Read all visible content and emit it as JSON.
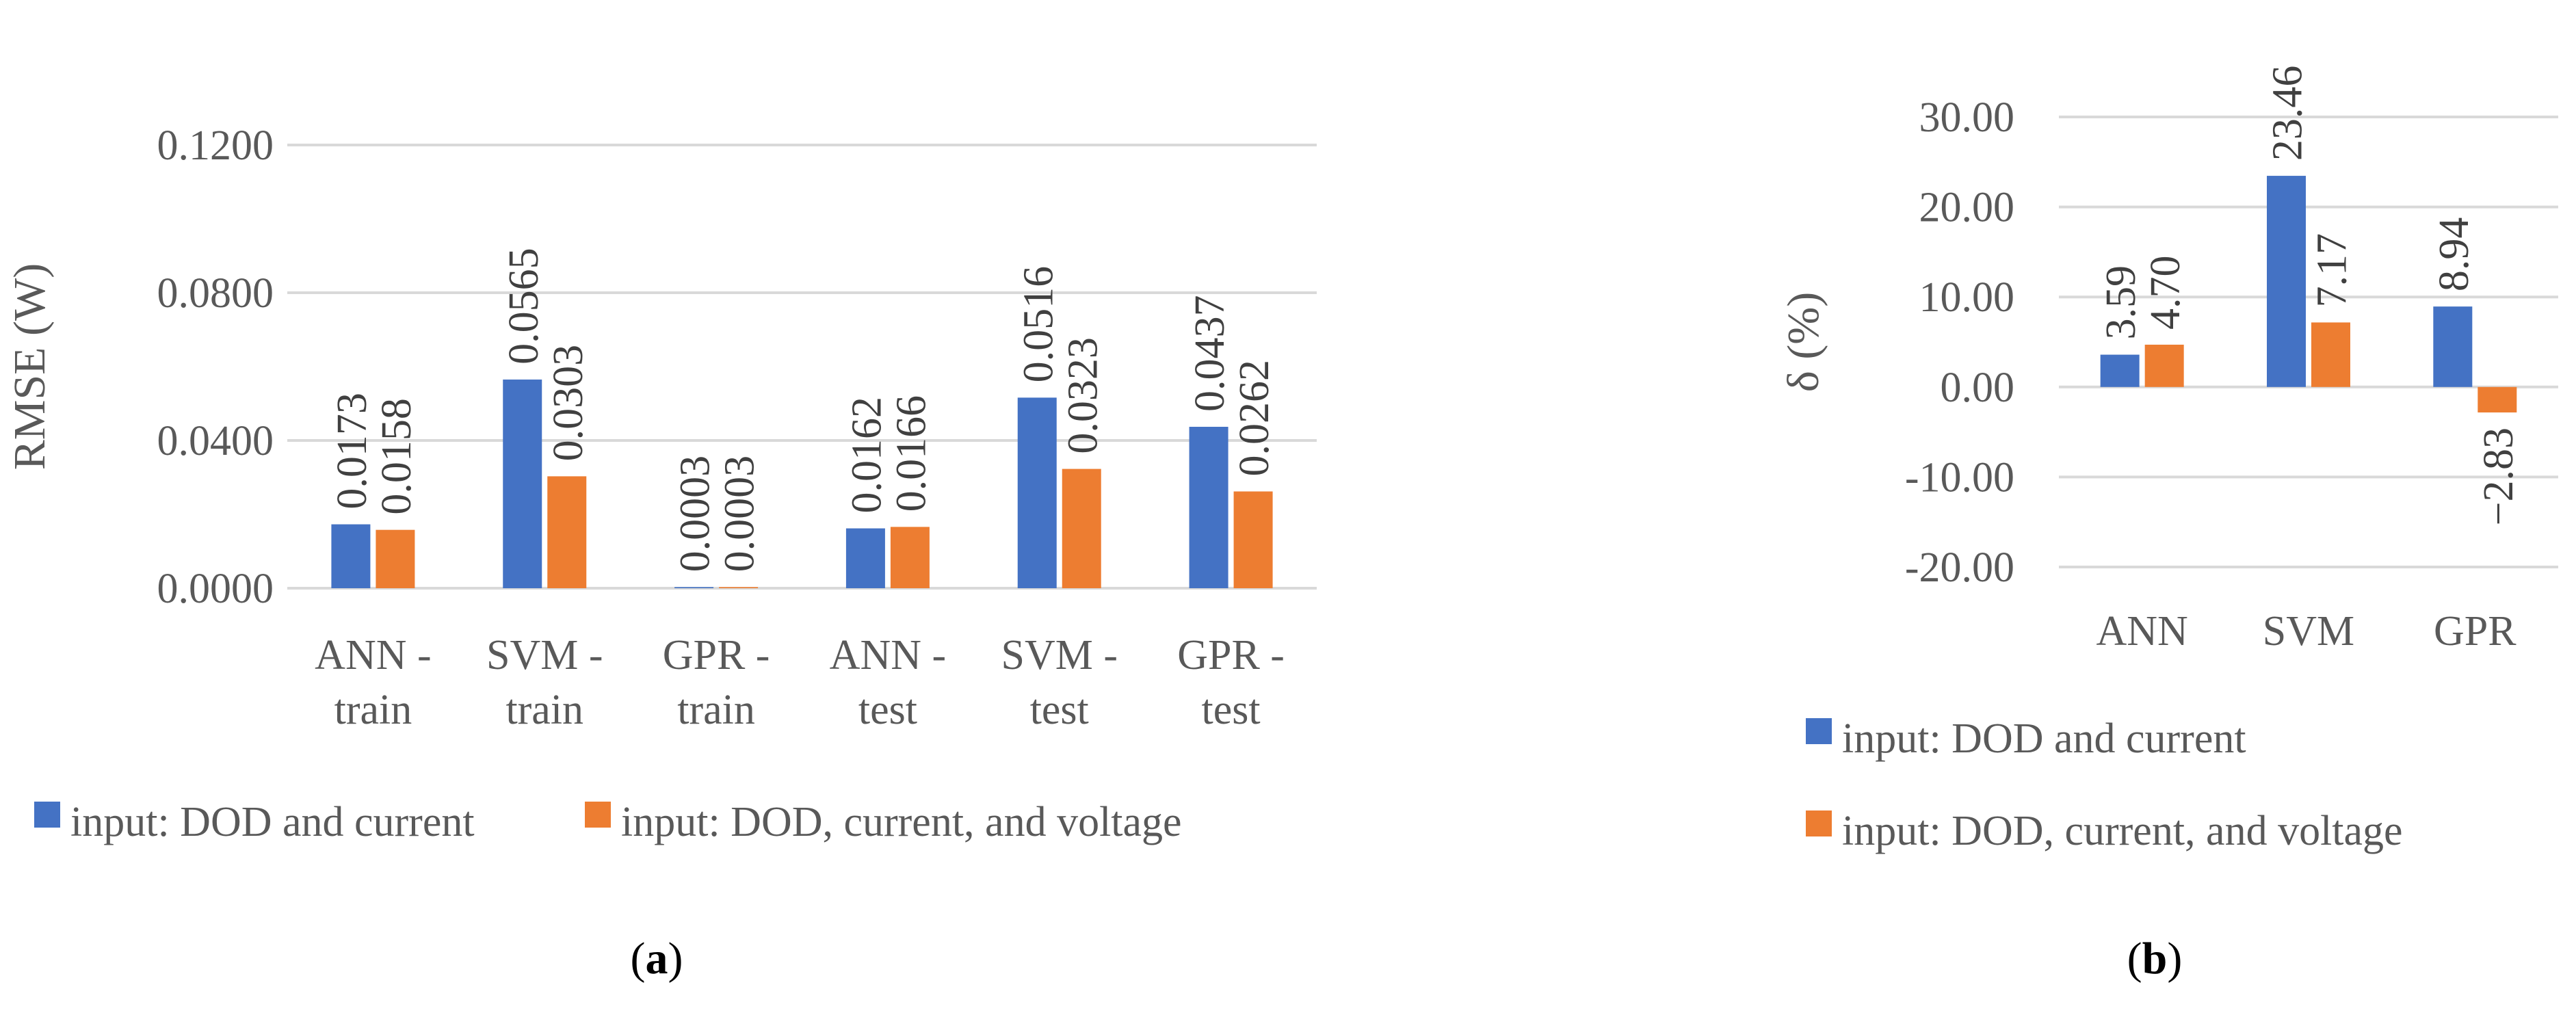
{
  "colors": {
    "series1": "#4472c4",
    "series2": "#ed7d31",
    "grid": "#d9d9d9"
  },
  "chart_data": [
    {
      "id": "a",
      "type": "bar",
      "caption_open": "(",
      "caption_letter": "a",
      "caption_close": ")",
      "ylabel": "RMSE (W)",
      "ylim": [
        0,
        0.12
      ],
      "yticks": [
        "0.0000",
        "0.0400",
        "0.0800",
        "0.1200"
      ],
      "categories": [
        [
          "ANN -",
          "train"
        ],
        [
          "SVM -",
          "train"
        ],
        [
          "GPR -",
          "train"
        ],
        [
          "ANN -",
          "test"
        ],
        [
          "SVM -",
          "test"
        ],
        [
          "GPR -",
          "test"
        ]
      ],
      "series": [
        {
          "name": "input: DOD and current",
          "values": [
            0.0173,
            0.0565,
            0.0003,
            0.0162,
            0.0516,
            0.0437
          ],
          "labels": [
            "0.0173",
            "0.0565",
            "0.0003",
            "0.0162",
            "0.0516",
            "0.0437"
          ]
        },
        {
          "name": "input: DOD, current, and voltage",
          "values": [
            0.0158,
            0.0303,
            0.0003,
            0.0166,
            0.0323,
            0.0262
          ],
          "labels": [
            "0.0158",
            "0.0303",
            "0.0003",
            "0.0166",
            "0.0323",
            "0.0262"
          ]
        }
      ]
    },
    {
      "id": "b",
      "type": "bar",
      "caption_open": "(",
      "caption_letter": "b",
      "caption_close": ")",
      "ylabel": "δ (%)",
      "ylim": [
        -20,
        30
      ],
      "yticks": [
        "-20.00",
        "-10.00",
        "0.00",
        "10.00",
        "20.00",
        "30.00"
      ],
      "categories": [
        [
          "ANN"
        ],
        [
          "SVM"
        ],
        [
          "GPR"
        ]
      ],
      "series": [
        {
          "name": "input: DOD and current",
          "values": [
            3.59,
            23.46,
            8.94
          ],
          "labels": [
            "3.59",
            "23.46",
            "8.94"
          ]
        },
        {
          "name": "input: DOD, current, and voltage",
          "values": [
            4.7,
            7.17,
            -2.83
          ],
          "labels": [
            "4.70",
            "7.17",
            "−2.83"
          ]
        }
      ]
    }
  ]
}
